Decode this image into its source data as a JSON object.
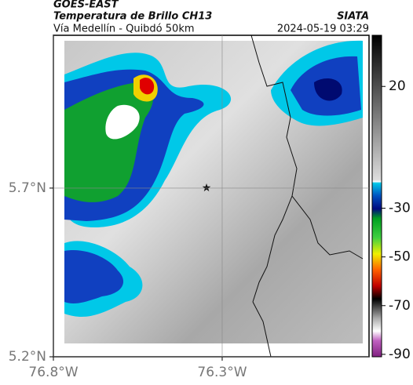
{
  "header": {
    "satellite": "GOES-EAST",
    "title": "Temperatura de Brillo CH13",
    "source": "SIATA",
    "subtitle": "Vía Medellín - Quibdó 50km",
    "timestamp": "2024-05-19 03:29"
  },
  "map": {
    "xlim": [
      -76.8,
      -75.865
    ],
    "ylim": [
      5.2,
      6.153
    ],
    "xticks": [
      {
        "value": -76.8,
        "label": "76.8°W"
      },
      {
        "value": -76.3,
        "label": "76.3°W"
      }
    ],
    "yticks": [
      {
        "value": 5.7,
        "label": "5.7°N"
      },
      {
        "value": 5.2,
        "label": "5.2°N"
      }
    ],
    "grid": true
  },
  "colorbar": {
    "lim": [
      -91,
      41
    ],
    "ticks": [
      20,
      -30,
      -50,
      -70,
      -90
    ]
  }
}
